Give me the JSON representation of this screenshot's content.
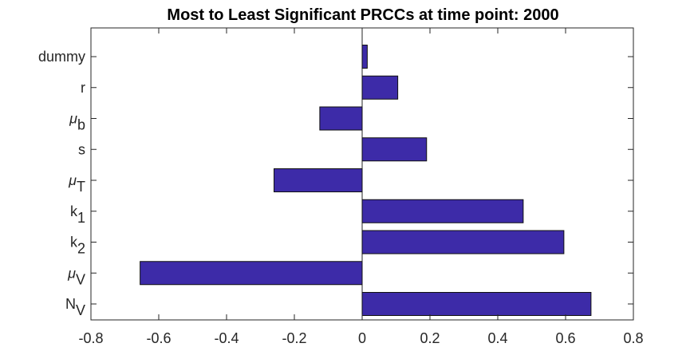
{
  "chart_data": {
    "type": "bar",
    "orientation": "horizontal",
    "title": "Most to Least Significant PRCCs at time point: 2000",
    "xlabel": "",
    "ylabel": "",
    "xlim": [
      -0.8,
      0.8
    ],
    "xticks": [
      -0.8,
      -0.6,
      -0.4,
      -0.2,
      0,
      0.2,
      0.4,
      0.6,
      0.8
    ],
    "xtick_labels": [
      "-0.8",
      "-0.6",
      "-0.4",
      "-0.2",
      "0",
      "0.2",
      "0.4",
      "0.6",
      "0.8"
    ],
    "categories_top_to_bottom": [
      {
        "base": "dummy",
        "sub": "",
        "greek": false
      },
      {
        "base": "r",
        "sub": "",
        "greek": false
      },
      {
        "base": "μ",
        "sub": "b",
        "greek": true
      },
      {
        "base": "s",
        "sub": "",
        "greek": false
      },
      {
        "base": "μ",
        "sub": "T",
        "greek": true
      },
      {
        "base": "k",
        "sub": "1",
        "greek": false
      },
      {
        "base": "k",
        "sub": "2",
        "greek": false
      },
      {
        "base": "μ",
        "sub": "V",
        "greek": true
      },
      {
        "base": "N",
        "sub": "V",
        "greek": false
      }
    ],
    "values_top_to_bottom": [
      0.015,
      0.105,
      -0.125,
      0.19,
      -0.26,
      0.475,
      0.595,
      -0.655,
      0.675
    ],
    "bar_color": "#3d2ba8",
    "grid": false,
    "legend": "none",
    "zero_line": true
  }
}
